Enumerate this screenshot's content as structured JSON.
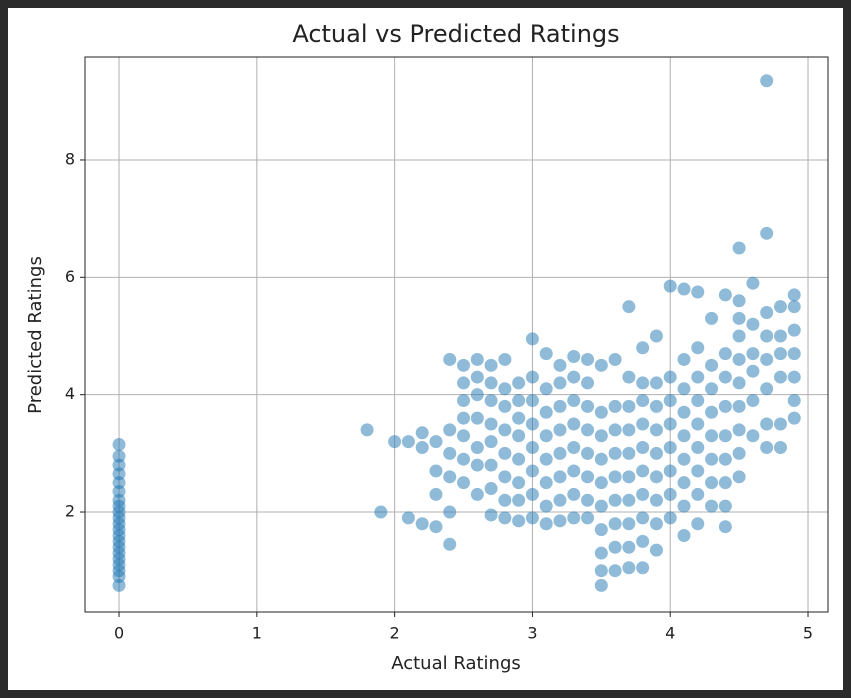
{
  "chart_data": {
    "type": "scatter",
    "title": "Actual vs Predicted Ratings",
    "x_label": "Actual Ratings",
    "y_label": "Predicted Ratings",
    "xlim": [
      -0.247,
      5.145
    ],
    "ylim": [
      0.296,
      9.755
    ],
    "xticks": [
      0,
      1,
      2,
      3,
      4,
      5
    ],
    "yticks": [
      2,
      4,
      6,
      8
    ],
    "grid": true,
    "series": [
      {
        "color": "#1f77b4",
        "x": [
          0,
          0,
          0,
          0,
          0,
          0,
          0,
          0,
          0,
          0,
          0,
          0,
          0,
          0,
          0,
          0,
          0,
          0,
          0,
          0,
          0,
          1.8,
          1.9,
          2.0,
          2.1,
          2.1,
          2.2,
          2.2,
          2.2,
          2.3,
          2.3,
          2.3,
          2.3,
          2.4,
          2.4,
          2.4,
          2.4,
          2.4,
          2.4,
          2.5,
          2.5,
          2.5,
          2.5,
          2.5,
          2.5,
          2.5,
          2.6,
          2.6,
          2.6,
          2.6,
          2.6,
          2.6,
          2.6,
          2.7,
          2.7,
          2.7,
          2.7,
          2.7,
          2.7,
          2.7,
          2.7,
          2.8,
          2.8,
          2.8,
          2.8,
          2.8,
          2.8,
          2.8,
          2.8,
          2.9,
          2.9,
          2.9,
          2.9,
          2.9,
          2.9,
          2.9,
          2.9,
          3.0,
          3.0,
          3.0,
          3.0,
          3.0,
          3.0,
          3.0,
          3.0,
          3.1,
          3.1,
          3.1,
          3.1,
          3.1,
          3.1,
          3.1,
          3.1,
          3.2,
          3.2,
          3.2,
          3.2,
          3.2,
          3.2,
          3.2,
          3.2,
          3.3,
          3.3,
          3.3,
          3.3,
          3.3,
          3.3,
          3.3,
          3.3,
          3.4,
          3.4,
          3.4,
          3.4,
          3.4,
          3.4,
          3.4,
          3.4,
          3.5,
          3.5,
          3.5,
          3.5,
          3.5,
          3.5,
          3.5,
          3.5,
          3.5,
          3.5,
          3.6,
          3.6,
          3.6,
          3.6,
          3.6,
          3.6,
          3.6,
          3.6,
          3.6,
          3.7,
          3.7,
          3.7,
          3.7,
          3.7,
          3.7,
          3.7,
          3.7,
          3.7,
          3.7,
          3.8,
          3.8,
          3.8,
          3.8,
          3.8,
          3.8,
          3.8,
          3.8,
          3.8,
          3.8,
          3.9,
          3.9,
          3.9,
          3.9,
          3.9,
          3.9,
          3.9,
          3.9,
          3.9,
          4.0,
          4.0,
          4.0,
          4.0,
          4.0,
          4.0,
          4.0,
          4.0,
          4.1,
          4.1,
          4.1,
          4.1,
          4.1,
          4.1,
          4.1,
          4.1,
          4.1,
          4.2,
          4.2,
          4.2,
          4.2,
          4.2,
          4.2,
          4.2,
          4.2,
          4.2,
          4.3,
          4.3,
          4.3,
          4.3,
          4.3,
          4.3,
          4.3,
          4.3,
          4.4,
          4.4,
          4.4,
          4.4,
          4.4,
          4.4,
          4.4,
          4.4,
          4.4,
          4.5,
          4.5,
          4.5,
          4.5,
          4.5,
          4.5,
          4.5,
          4.5,
          4.5,
          4.5,
          4.6,
          4.6,
          4.6,
          4.6,
          4.6,
          4.6,
          4.7,
          4.7,
          4.7,
          4.7,
          4.7,
          4.7,
          4.7,
          4.7,
          4.8,
          4.8,
          4.8,
          4.8,
          4.8,
          4.8,
          4.9,
          4.9,
          4.9,
          4.9,
          4.9,
          4.9,
          4.9
        ],
        "values": [
          0.75,
          0.9,
          1.0,
          1.1,
          1.2,
          1.3,
          1.4,
          1.5,
          1.6,
          1.7,
          1.8,
          1.9,
          2.0,
          2.1,
          2.2,
          2.35,
          2.5,
          2.65,
          2.8,
          2.95,
          3.15,
          3.4,
          2.0,
          3.2,
          1.9,
          3.2,
          1.8,
          3.1,
          3.35,
          1.75,
          2.3,
          2.7,
          3.2,
          1.45,
          2.0,
          2.6,
          3.0,
          3.4,
          4.6,
          2.5,
          2.9,
          3.3,
          3.6,
          3.9,
          4.2,
          4.5,
          2.3,
          2.8,
          3.1,
          3.6,
          4.0,
          4.3,
          4.6,
          1.95,
          2.4,
          2.8,
          3.2,
          3.5,
          3.9,
          4.2,
          4.5,
          1.9,
          2.2,
          2.6,
          3.0,
          3.4,
          3.8,
          4.1,
          4.6,
          1.85,
          2.2,
          2.5,
          2.9,
          3.3,
          3.6,
          3.9,
          4.2,
          1.9,
          2.3,
          2.7,
          3.1,
          3.5,
          3.9,
          4.3,
          4.95,
          1.8,
          2.1,
          2.5,
          2.9,
          3.3,
          3.7,
          4.1,
          4.7,
          1.85,
          2.2,
          2.6,
          3.0,
          3.4,
          3.8,
          4.2,
          4.5,
          1.9,
          2.3,
          2.7,
          3.1,
          3.5,
          3.9,
          4.3,
          4.65,
          1.9,
          2.2,
          2.6,
          3.0,
          3.4,
          3.8,
          4.2,
          4.6,
          0.75,
          1.0,
          1.3,
          1.7,
          2.1,
          2.5,
          2.9,
          3.3,
          3.7,
          4.5,
          1.0,
          1.4,
          1.8,
          2.2,
          2.6,
          3.0,
          3.4,
          3.8,
          4.6,
          1.05,
          1.4,
          1.8,
          2.2,
          2.6,
          3.0,
          3.4,
          3.8,
          4.3,
          5.5,
          1.05,
          1.5,
          1.9,
          2.3,
          2.7,
          3.1,
          3.5,
          3.9,
          4.2,
          4.8,
          1.35,
          1.8,
          2.2,
          2.6,
          3.0,
          3.4,
          3.8,
          4.2,
          5.0,
          1.9,
          2.3,
          2.7,
          3.1,
          3.5,
          3.9,
          4.3,
          5.85,
          1.6,
          2.1,
          2.5,
          2.9,
          3.3,
          3.7,
          4.1,
          4.6,
          5.8,
          1.8,
          2.3,
          2.7,
          3.1,
          3.5,
          3.9,
          4.3,
          4.8,
          5.75,
          2.1,
          2.5,
          2.9,
          3.3,
          3.7,
          4.1,
          4.5,
          5.3,
          1.75,
          2.1,
          2.5,
          2.9,
          3.3,
          3.8,
          4.3,
          4.7,
          5.7,
          2.6,
          3.0,
          3.4,
          3.8,
          4.2,
          4.6,
          5.0,
          5.3,
          5.6,
          6.5,
          3.3,
          3.9,
          4.4,
          4.7,
          5.2,
          5.9,
          3.1,
          3.5,
          4.1,
          4.6,
          5.0,
          5.4,
          6.75,
          9.35,
          3.1,
          3.5,
          4.3,
          4.7,
          5.0,
          5.5,
          3.6,
          3.9,
          4.3,
          4.7,
          5.1,
          5.5,
          5.7
        ]
      }
    ]
  }
}
